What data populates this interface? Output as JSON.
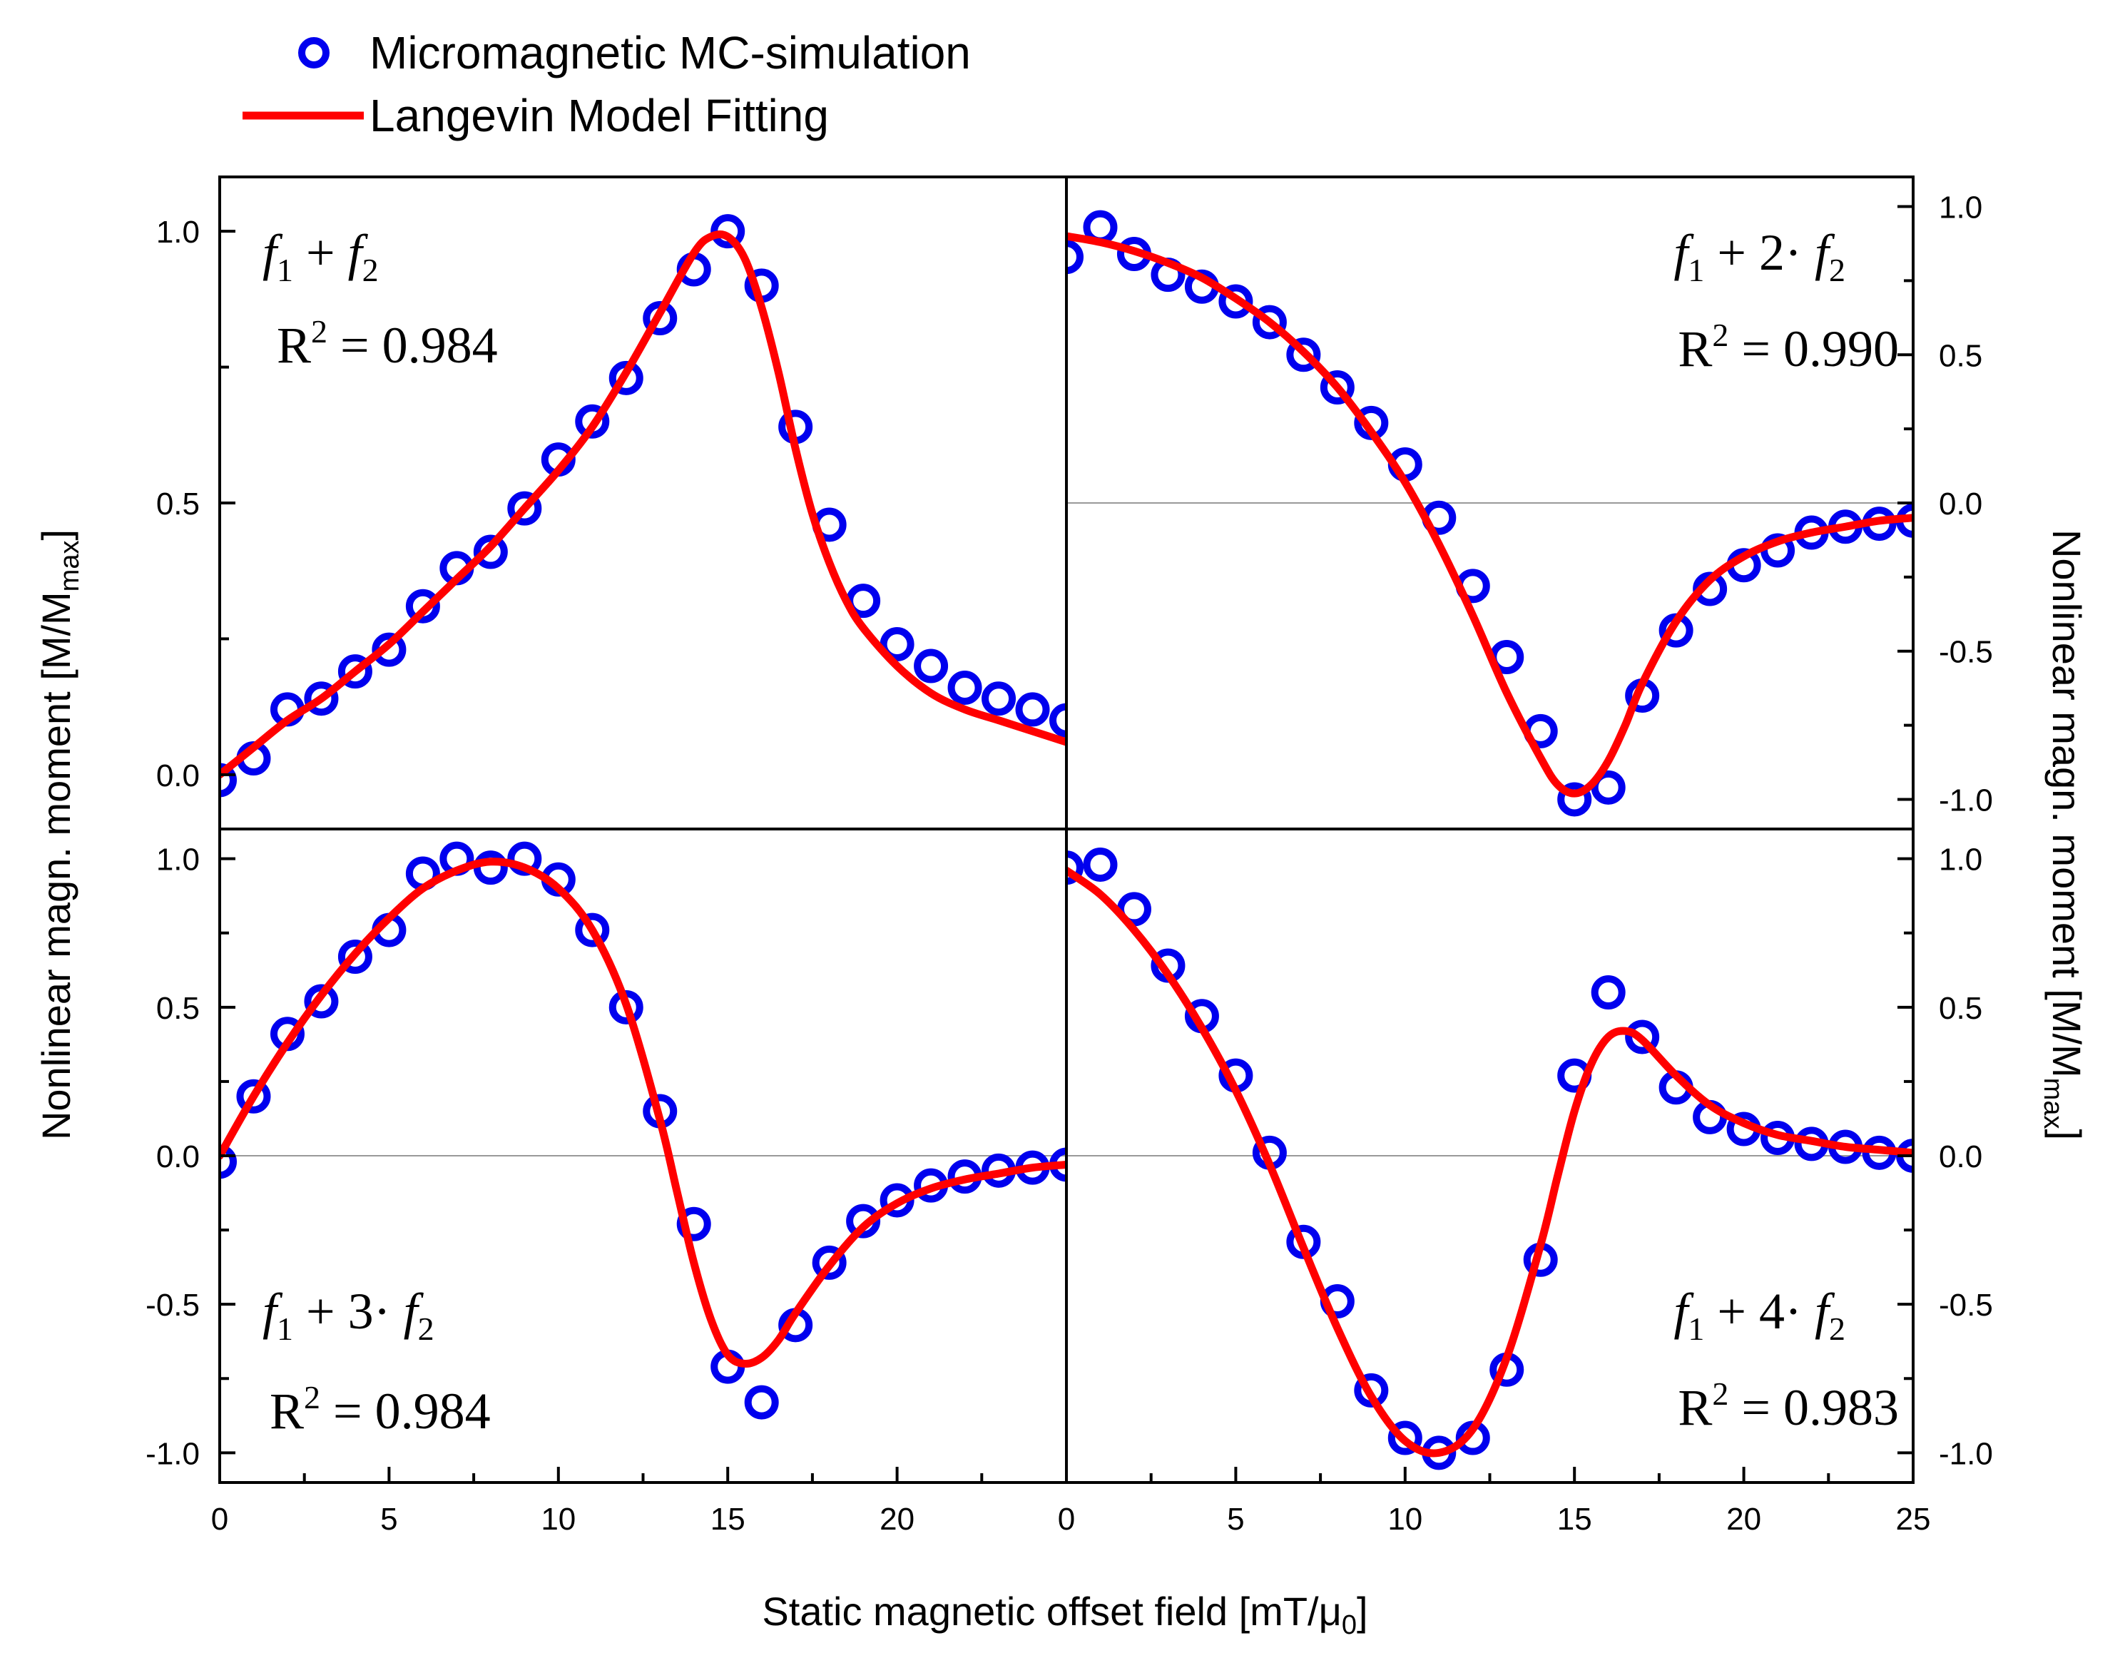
{
  "colors": {
    "simulation": "#0000ee",
    "fit": "#ff0000",
    "axis": "#000000",
    "zero_line": "#999999"
  },
  "legend": {
    "simulation_label": "Micromagnetic MC-simulation",
    "fit_label": "Langevin Model Fitting"
  },
  "axes": {
    "xlabel": "Static magnetic offset field [mT/μ",
    "xlabel_sub": "0",
    "xlabel_end": "]",
    "ylabel": "Nonlinear magn. moment [M/M",
    "ylabel_sub": "max",
    "ylabel_end": "]"
  },
  "chart_data": [
    {
      "type": "scatter+line",
      "panel": "top-left",
      "label": {
        "f1": "f",
        "sub1": "1",
        "op": "+",
        "f2": "f",
        "sub2": "2",
        "r2": "R",
        "r2_exp": "2",
        "r2_val": "= 0.984"
      },
      "xlim": [
        0,
        25
      ],
      "ylim": [
        -0.1,
        1.1
      ],
      "x_ticks": [],
      "y_ticks": [
        "0.0",
        "0.5",
        "1.0"
      ],
      "y_tick_values": [
        0,
        0.5,
        1.0
      ],
      "y_axis_side": "left",
      "zero_line": false,
      "simulation": {
        "x": [
          0,
          1,
          2,
          3,
          4,
          5,
          6,
          7,
          8,
          9,
          10,
          11,
          12,
          13,
          14,
          15,
          16,
          17,
          18,
          19,
          20,
          21,
          22,
          23,
          24,
          25
        ],
        "y": [
          -0.01,
          0.03,
          0.12,
          0.14,
          0.19,
          0.23,
          0.31,
          0.38,
          0.41,
          0.49,
          0.58,
          0.65,
          0.73,
          0.84,
          0.93,
          1.0,
          0.9,
          0.64,
          0.46,
          0.32,
          0.24,
          0.2,
          0.16,
          0.14,
          0.12,
          0.1
        ]
      },
      "fit": {
        "x": [
          0,
          1,
          2,
          3,
          4,
          5,
          6,
          7,
          8,
          9,
          10,
          11,
          12,
          13,
          14,
          14.5,
          15,
          15.5,
          16,
          16.5,
          17,
          17.5,
          18,
          18.5,
          19,
          20,
          21,
          22,
          23,
          24,
          25
        ],
        "y": [
          0.0,
          0.05,
          0.1,
          0.14,
          0.19,
          0.24,
          0.3,
          0.36,
          0.42,
          0.49,
          0.56,
          0.64,
          0.74,
          0.85,
          0.96,
          0.99,
          0.99,
          0.95,
          0.86,
          0.74,
          0.6,
          0.48,
          0.39,
          0.32,
          0.27,
          0.2,
          0.15,
          0.12,
          0.1,
          0.08,
          0.06
        ]
      }
    },
    {
      "type": "scatter+line",
      "panel": "top-right",
      "label": {
        "f1": "f",
        "sub1": "1",
        "op": "+ 2·",
        "f2": "f",
        "sub2": "2",
        "r2": "R",
        "r2_exp": "2",
        "r2_val": "= 0.990"
      },
      "xlim": [
        0,
        25
      ],
      "ylim": [
        -1.1,
        1.1
      ],
      "x_ticks": [],
      "y_ticks": [
        "-1.0",
        "-0.5",
        "0.0",
        "0.5",
        "1.0"
      ],
      "y_tick_values": [
        -1,
        -0.5,
        0,
        0.5,
        1
      ],
      "y_axis_side": "right",
      "zero_line": true,
      "simulation": {
        "x": [
          0,
          1,
          2,
          3,
          4,
          5,
          6,
          7,
          8,
          9,
          10,
          11,
          12,
          13,
          14,
          15,
          16,
          17,
          18,
          19,
          20,
          21,
          22,
          23,
          24,
          25
        ],
        "y": [
          0.83,
          0.93,
          0.84,
          0.77,
          0.73,
          0.68,
          0.61,
          0.5,
          0.39,
          0.27,
          0.13,
          -0.05,
          -0.28,
          -0.52,
          -0.77,
          -1.0,
          -0.96,
          -0.65,
          -0.43,
          -0.29,
          -0.21,
          -0.16,
          -0.1,
          -0.08,
          -0.07,
          -0.06
        ]
      },
      "fit": {
        "x": [
          0,
          1,
          2,
          3,
          4,
          5,
          6,
          7,
          8,
          9,
          10,
          11,
          12,
          13,
          14,
          14.5,
          15,
          15.5,
          16,
          16.5,
          17,
          18,
          19,
          20,
          21,
          22,
          23,
          24,
          25
        ],
        "y": [
          0.9,
          0.88,
          0.85,
          0.81,
          0.76,
          0.69,
          0.61,
          0.51,
          0.39,
          0.24,
          0.07,
          -0.14,
          -0.38,
          -0.64,
          -0.86,
          -0.95,
          -0.98,
          -0.95,
          -0.87,
          -0.75,
          -0.61,
          -0.4,
          -0.26,
          -0.18,
          -0.13,
          -0.1,
          -0.08,
          -0.06,
          -0.05
        ]
      }
    },
    {
      "type": "scatter+line",
      "panel": "bottom-left",
      "label": {
        "f1": "f",
        "sub1": "1",
        "op": "+ 3·",
        "f2": "f",
        "sub2": "2",
        "r2": "R",
        "r2_exp": "2",
        "r2_val": "= 0.984"
      },
      "xlim": [
        0,
        25
      ],
      "ylim": [
        -1.1,
        1.1
      ],
      "x_ticks": [
        "0",
        "5",
        "10",
        "15",
        "20"
      ],
      "x_tick_values": [
        0,
        5,
        10,
        15,
        20
      ],
      "y_ticks": [
        "-1.0",
        "-0.5",
        "0.0",
        "0.5",
        "1.0"
      ],
      "y_tick_values": [
        -1,
        -0.5,
        0,
        0.5,
        1
      ],
      "y_axis_side": "left",
      "zero_line": true,
      "simulation": {
        "x": [
          0,
          1,
          2,
          3,
          4,
          5,
          6,
          7,
          8,
          9,
          10,
          11,
          12,
          13,
          14,
          15,
          16,
          17,
          18,
          19,
          20,
          21,
          22,
          23,
          24,
          25
        ],
        "y": [
          -0.02,
          0.2,
          0.41,
          0.52,
          0.67,
          0.76,
          0.95,
          1.0,
          0.97,
          1.0,
          0.93,
          0.76,
          0.5,
          0.15,
          -0.23,
          -0.71,
          -0.83,
          -0.57,
          -0.36,
          -0.22,
          -0.15,
          -0.1,
          -0.07,
          -0.05,
          -0.04,
          -0.03
        ]
      },
      "fit": {
        "x": [
          0,
          1,
          2,
          3,
          4,
          5,
          6,
          7,
          8,
          9,
          10,
          11,
          12,
          13,
          13.5,
          14,
          14.5,
          15,
          15.5,
          16,
          16.5,
          17,
          18,
          19,
          20,
          21,
          22,
          23,
          24,
          25
        ],
        "y": [
          0.0,
          0.2,
          0.38,
          0.54,
          0.68,
          0.8,
          0.9,
          0.96,
          0.99,
          0.97,
          0.9,
          0.76,
          0.51,
          0.12,
          -0.12,
          -0.36,
          -0.55,
          -0.67,
          -0.7,
          -0.68,
          -0.62,
          -0.53,
          -0.37,
          -0.24,
          -0.16,
          -0.11,
          -0.08,
          -0.06,
          -0.04,
          -0.03
        ]
      }
    },
    {
      "type": "scatter+line",
      "panel": "bottom-right",
      "label": {
        "f1": "f",
        "sub1": "1",
        "op": "+ 4·",
        "f2": "f",
        "sub2": "2",
        "r2": "R",
        "r2_exp": "2",
        "r2_val": "= 0.983"
      },
      "xlim": [
        0,
        25
      ],
      "ylim": [
        -1.1,
        1.1
      ],
      "x_ticks": [
        "0",
        "5",
        "10",
        "15",
        "20",
        "25"
      ],
      "x_tick_values": [
        0,
        5,
        10,
        15,
        20,
        25
      ],
      "y_ticks": [
        "-1.0",
        "-0.5",
        "0.0",
        "0.5",
        "1.0"
      ],
      "y_tick_values": [
        -1,
        -0.5,
        0,
        0.5,
        1
      ],
      "y_axis_side": "right",
      "zero_line": true,
      "simulation": {
        "x": [
          0,
          1,
          2,
          3,
          4,
          5,
          6,
          7,
          8,
          9,
          10,
          11,
          12,
          13,
          14,
          15,
          16,
          17,
          18,
          19,
          20,
          21,
          22,
          23,
          24,
          25
        ],
        "y": [
          0.97,
          0.98,
          0.83,
          0.64,
          0.47,
          0.27,
          0.01,
          -0.29,
          -0.49,
          -0.79,
          -0.95,
          -1.0,
          -0.95,
          -0.72,
          -0.35,
          0.27,
          0.55,
          0.4,
          0.23,
          0.13,
          0.09,
          0.06,
          0.04,
          0.03,
          0.01,
          0.0
        ]
      },
      "fit": {
        "x": [
          0,
          1,
          2,
          3,
          4,
          5,
          6,
          7,
          8,
          9,
          10,
          11,
          12,
          13,
          14,
          14.5,
          15,
          15.5,
          16,
          16.5,
          17,
          18,
          19,
          20,
          21,
          22,
          23,
          24,
          25
        ],
        "y": [
          0.96,
          0.88,
          0.76,
          0.61,
          0.43,
          0.22,
          -0.03,
          -0.31,
          -0.58,
          -0.81,
          -0.96,
          -1.0,
          -0.92,
          -0.68,
          -0.3,
          -0.07,
          0.15,
          0.31,
          0.4,
          0.42,
          0.39,
          0.27,
          0.17,
          0.11,
          0.07,
          0.05,
          0.03,
          0.02,
          0.01
        ]
      }
    }
  ]
}
